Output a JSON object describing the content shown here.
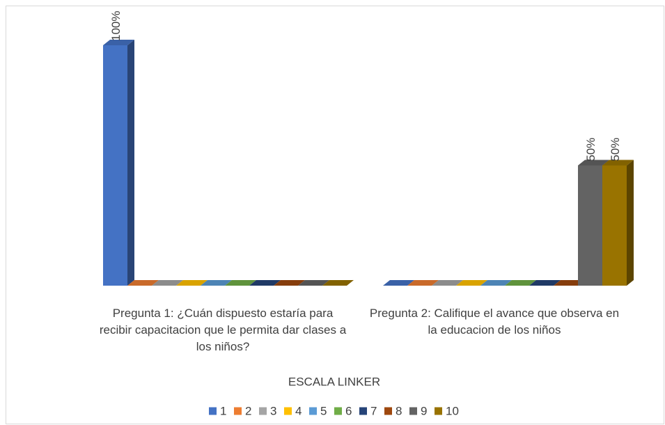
{
  "chart_data": {
    "type": "bar3d",
    "categories": [
      "Pregunta 1: ¿Cuán dispuesto estaría para recibir capacitacion que le permita dar clases a los niños?",
      "Pregunta 2: Califique el avance que observa en la educacion de los niños"
    ],
    "x_label": "ESCALA LINKER",
    "ylim": [
      0,
      100
    ],
    "series": [
      {
        "name": "1",
        "color": "#4472c4",
        "values": [
          100,
          0
        ],
        "value_labels": [
          "100%",
          null
        ]
      },
      {
        "name": "2",
        "color": "#ed7d31",
        "values": [
          0,
          0
        ],
        "value_labels": [
          null,
          null
        ]
      },
      {
        "name": "3",
        "color": "#a5a5a5",
        "values": [
          0,
          0
        ],
        "value_labels": [
          null,
          null
        ]
      },
      {
        "name": "4",
        "color": "#ffc000",
        "values": [
          0,
          0
        ],
        "value_labels": [
          null,
          null
        ]
      },
      {
        "name": "5",
        "color": "#5b9bd5",
        "values": [
          0,
          0
        ],
        "value_labels": [
          null,
          null
        ]
      },
      {
        "name": "6",
        "color": "#70ad47",
        "values": [
          0,
          0
        ],
        "value_labels": [
          null,
          null
        ]
      },
      {
        "name": "7",
        "color": "#264478",
        "values": [
          0,
          0
        ],
        "value_labels": [
          null,
          null
        ]
      },
      {
        "name": "8",
        "color": "#9e480e",
        "values": [
          0,
          0
        ],
        "value_labels": [
          null,
          null
        ]
      },
      {
        "name": "9",
        "color": "#636363",
        "values": [
          0,
          50
        ],
        "value_labels": [
          null,
          "50%"
        ]
      },
      {
        "name": "10",
        "color": "#997300",
        "values": [
          0,
          50
        ],
        "value_labels": [
          null,
          "50%"
        ]
      }
    ],
    "legend": "bottom"
  }
}
